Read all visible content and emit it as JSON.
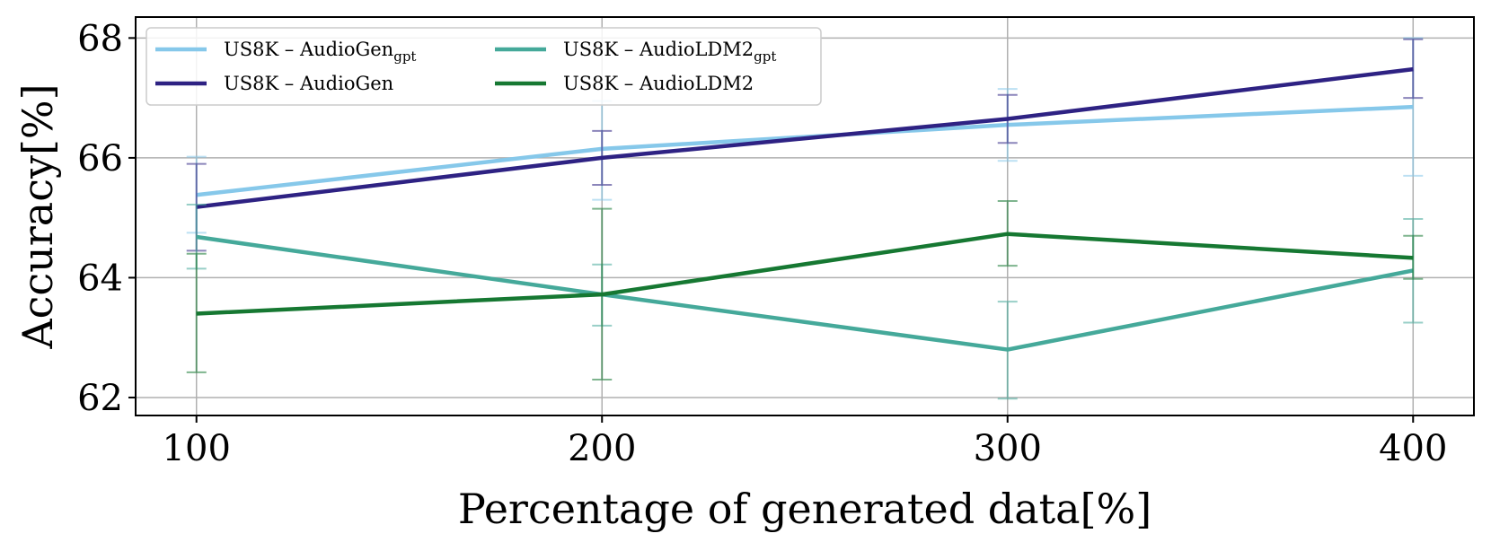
{
  "chart_data": {
    "type": "line",
    "title": "",
    "xlabel": "Percentage of generated data[%]",
    "ylabel": "Accuracy[%]",
    "x": [
      100,
      200,
      300,
      400
    ],
    "xlim": [
      85,
      415
    ],
    "ylim": [
      61.7,
      68.35
    ],
    "xticks": [
      100,
      200,
      300,
      400
    ],
    "yticks": [
      62,
      64,
      66,
      68
    ],
    "grid": true,
    "legend_position": "top-left",
    "series": [
      {
        "name": "US8K – AudioGen",
        "subscript": "gpt",
        "color": "#86c8ea",
        "values": [
          65.38,
          66.15,
          66.55,
          66.85
        ],
        "err_low": [
          64.75,
          65.3,
          65.95,
          65.7
        ],
        "err_high": [
          66.02,
          66.95,
          67.15,
          68.0
        ]
      },
      {
        "name": "US8K – AudioGen",
        "subscript": "",
        "color": "#2e2283",
        "values": [
          65.18,
          66.0,
          66.65,
          67.48
        ],
        "err_low": [
          64.45,
          65.55,
          66.25,
          67.0
        ],
        "err_high": [
          65.9,
          66.45,
          67.05,
          67.98
        ]
      },
      {
        "name": "US8K – AudioLDM2",
        "subscript": "gpt",
        "color": "#45a99a",
        "values": [
          64.68,
          63.72,
          62.8,
          64.12
        ],
        "err_low": [
          64.15,
          63.2,
          61.98,
          63.25
        ],
        "err_high": [
          65.22,
          64.22,
          63.6,
          64.98
        ]
      },
      {
        "name": "US8K – AudioLDM2",
        "subscript": "",
        "color": "#167832",
        "values": [
          63.4,
          63.72,
          64.73,
          64.33
        ],
        "err_low": [
          62.42,
          62.3,
          64.2,
          63.98
        ],
        "err_high": [
          64.4,
          65.15,
          65.28,
          64.7
        ]
      }
    ]
  }
}
